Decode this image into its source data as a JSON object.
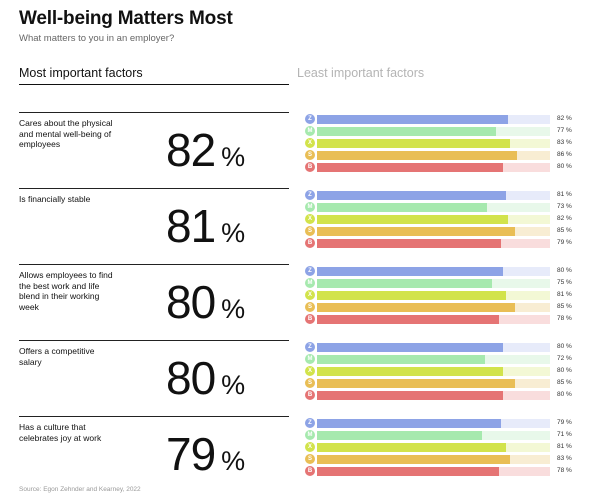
{
  "header": {
    "title": "Well-being Matters Most",
    "subtitle": "What matters to you in an employer?"
  },
  "tabs": {
    "active": "Most important factors",
    "inactive": "Least important factors"
  },
  "source": "Source: Egon Zehnder and Kearney, 2022",
  "generations": [
    {
      "icon_label": "Z",
      "color": "#8da3e6",
      "track_color": "#e7ebfa"
    },
    {
      "icon_label": "M",
      "color": "#a6e9ae",
      "track_color": "#e8f8ea"
    },
    {
      "icon_label": "X",
      "color": "#d2e34b",
      "track_color": "#f3f8d5"
    },
    {
      "icon_label": "S",
      "color": "#e9be55",
      "track_color": "#f8edd3"
    },
    {
      "icon_label": "B",
      "color": "#e57474",
      "track_color": "#f9dddd"
    }
  ],
  "chart_data": {
    "type": "bar",
    "unit": "%",
    "xlim": [
      0,
      100
    ],
    "groups": [
      {
        "factor": "Cares about the physical and mental well-being of employees",
        "overall": 82,
        "values": [
          82,
          77,
          83,
          86,
          80
        ]
      },
      {
        "factor": "Is financially stable",
        "overall": 81,
        "values": [
          81,
          73,
          82,
          85,
          79
        ]
      },
      {
        "factor": "Allows employees to find the best work and life blend in their working week",
        "overall": 80,
        "values": [
          80,
          75,
          81,
          85,
          78
        ]
      },
      {
        "factor": "Offers a competitive salary",
        "overall": 80,
        "values": [
          80,
          72,
          80,
          85,
          80
        ]
      },
      {
        "factor": "Has a culture that celebrates joy at work",
        "overall": 79,
        "values": [
          79,
          71,
          81,
          83,
          78
        ]
      }
    ]
  }
}
